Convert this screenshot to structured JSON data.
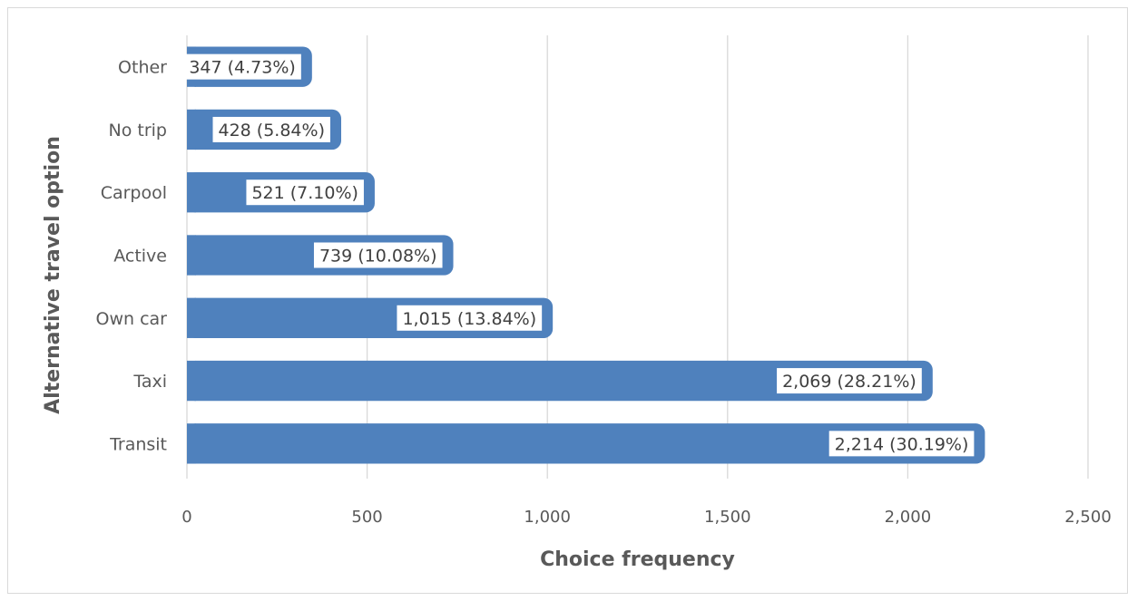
{
  "chart_data": {
    "type": "bar",
    "orientation": "horizontal",
    "categories": [
      "Transit",
      "Taxi",
      "Own car",
      "Active",
      "Carpool",
      "No trip",
      "Other"
    ],
    "values": [
      2214,
      2069,
      1015,
      739,
      521,
      428,
      347
    ],
    "data_labels": [
      "2,214 (30.19%)",
      "2,069 (28.21%)",
      "1,015 (13.84%)",
      "739 (10.08%)",
      "521 (7.10%)",
      "428 (5.84%)",
      "347 (4.73%)"
    ],
    "xlabel": "Choice frequency",
    "ylabel": "Alternative travel option",
    "xlim": [
      0,
      2500
    ],
    "xticks": [
      0,
      500,
      1000,
      1500,
      2000,
      2500
    ],
    "xtick_labels": [
      "0",
      "500",
      "1,000",
      "1,500",
      "2,000",
      "2,500"
    ],
    "grid": "vertical",
    "legend": "none",
    "bar_color": "#4f81bd",
    "grid_color": "#d9d9d9"
  }
}
